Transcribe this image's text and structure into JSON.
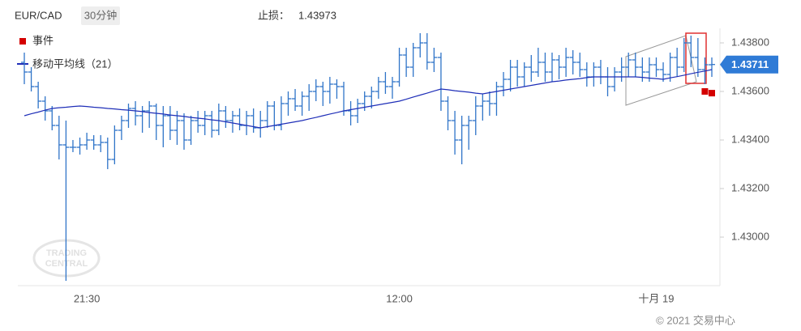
{
  "chart_data": {
    "type": "ohlc",
    "symbol": "EUR/CAD",
    "interval": "30分钟",
    "stop_loss_label": "止损：",
    "stop_loss": 1.43973,
    "last_price": 1.43711,
    "copyright": "© 2021 交易中心",
    "watermark": [
      "TRADING",
      "CENTRAL"
    ],
    "color": "#2f74c8",
    "categories": [
      null,
      null,
      null,
      null,
      null,
      null,
      null,
      null,
      null,
      "21:30",
      null,
      null,
      null,
      null,
      null,
      null,
      null,
      null,
      null,
      null,
      null,
      null,
      null,
      null,
      null,
      null,
      null,
      null,
      null,
      null,
      null,
      null,
      null,
      null,
      null,
      null,
      null,
      null,
      null,
      null,
      null,
      null,
      null,
      null,
      null,
      null,
      null,
      null,
      null,
      null,
      null,
      null,
      null,
      null,
      "12:00",
      null,
      null,
      null,
      null,
      null,
      null,
      null,
      null,
      null,
      null,
      null,
      null,
      null,
      null,
      null,
      null,
      null,
      null,
      null,
      null,
      null,
      null,
      null,
      null,
      null,
      null,
      null,
      null,
      null,
      null,
      null,
      null,
      null,
      null,
      null,
      null,
      "十月 19",
      null,
      null,
      null,
      null,
      null,
      null,
      null,
      null
    ],
    "open": [
      1.4372,
      1.4368,
      1.4362,
      1.4356,
      1.4352,
      1.4346,
      1.4338,
      1.4337,
      1.4337,
      1.4338,
      1.434,
      1.4338,
      1.4339,
      1.4332,
      1.4344,
      1.4348,
      1.4353,
      1.435,
      1.4352,
      1.4354,
      1.4346,
      1.435,
      1.4344,
      1.4348,
      1.434,
      1.4348,
      1.4346,
      1.435,
      1.4344,
      1.4352,
      1.4348,
      1.435,
      1.4346,
      1.435,
      1.4345,
      1.4348,
      1.4354,
      1.4346,
      1.4355,
      1.4357,
      1.4354,
      1.4358,
      1.436,
      1.4362,
      1.436,
      1.4363,
      1.4362,
      1.4352,
      1.435,
      1.4355,
      1.4358,
      1.436,
      1.4364,
      1.4362,
      1.4364,
      1.4375,
      1.437,
      1.4378,
      1.438,
      1.4372,
      1.4374,
      1.4356,
      1.4348,
      1.434,
      1.4346,
      1.4348,
      1.4354,
      1.4356,
      1.4355,
      1.4362,
      1.4365,
      1.437,
      1.4366,
      1.437,
      1.4368,
      1.4372,
      1.4368,
      1.4373,
      1.437,
      1.4374,
      1.4372,
      1.4369,
      1.4366,
      1.437,
      1.4366,
      1.4362,
      1.4368,
      1.437,
      1.4373,
      1.437,
      1.4368,
      1.4371,
      1.4369,
      1.4367,
      1.4374,
      1.437,
      1.438,
      1.4374,
      1.4369,
      1.4371
    ],
    "high": [
      1.4376,
      1.437,
      1.4364,
      1.4358,
      1.4354,
      1.435,
      1.4348,
      1.434,
      1.4341,
      1.4343,
      1.4342,
      1.4342,
      1.4341,
      1.4346,
      1.435,
      1.4355,
      1.4356,
      1.4354,
      1.4356,
      1.4355,
      1.4354,
      1.4354,
      1.4352,
      1.4351,
      1.435,
      1.4352,
      1.4352,
      1.4352,
      1.4355,
      1.4354,
      1.4352,
      1.4353,
      1.4352,
      1.4353,
      1.4352,
      1.4356,
      1.4356,
      1.4358,
      1.436,
      1.4361,
      1.436,
      1.4363,
      1.4365,
      1.4364,
      1.4366,
      1.4365,
      1.4364,
      1.4356,
      1.4357,
      1.436,
      1.4362,
      1.4366,
      1.4368,
      1.4366,
      1.4378,
      1.4378,
      1.438,
      1.4384,
      1.4384,
      1.4378,
      1.4376,
      1.4358,
      1.4352,
      1.435,
      1.435,
      1.4358,
      1.4359,
      1.436,
      1.4364,
      1.4368,
      1.4373,
      1.4373,
      1.4372,
      1.4375,
      1.4378,
      1.4376,
      1.4376,
      1.4375,
      1.4378,
      1.4377,
      1.4376,
      1.4372,
      1.4372,
      1.4373,
      1.437,
      1.437,
      1.4374,
      1.4376,
      1.4376,
      1.4374,
      1.4374,
      1.4374,
      1.4372,
      1.4376,
      1.4378,
      1.4382,
      1.4383,
      1.4382,
      1.4374,
      1.4374
    ],
    "low": [
      1.4363,
      1.436,
      1.4353,
      1.4348,
      1.4344,
      1.4332,
      1.4282,
      1.4335,
      1.4334,
      1.4336,
      1.4336,
      1.4335,
      1.4328,
      1.433,
      1.434,
      1.4345,
      1.4346,
      1.4343,
      1.4345,
      1.434,
      1.4337,
      1.434,
      1.4338,
      1.4336,
      1.4338,
      1.4343,
      1.4342,
      1.4341,
      1.4342,
      1.4345,
      1.4343,
      1.4344,
      1.4342,
      1.4343,
      1.4341,
      1.4345,
      1.4344,
      1.4344,
      1.435,
      1.4352,
      1.435,
      1.4352,
      1.4356,
      1.4354,
      1.4355,
      1.4357,
      1.435,
      1.4346,
      1.4347,
      1.4352,
      1.4353,
      1.4357,
      1.4359,
      1.4357,
      1.4362,
      1.4366,
      1.4366,
      1.4374,
      1.4369,
      1.4368,
      1.4352,
      1.4344,
      1.4334,
      1.433,
      1.4336,
      1.4342,
      1.4348,
      1.435,
      1.435,
      1.4358,
      1.436,
      1.4362,
      1.4362,
      1.4364,
      1.4366,
      1.4364,
      1.4364,
      1.4365,
      1.4366,
      1.4367,
      1.4366,
      1.4362,
      1.4362,
      1.4363,
      1.4358,
      1.436,
      1.4364,
      1.4366,
      1.4366,
      1.4364,
      1.4364,
      1.4366,
      1.4364,
      1.4364,
      1.4366,
      1.4368,
      1.437,
      1.4366,
      1.4363,
      1.4366
    ],
    "close": [
      1.4368,
      1.4362,
      1.4356,
      1.4352,
      1.4346,
      1.4338,
      1.4337,
      1.4337,
      1.4338,
      1.434,
      1.4338,
      1.4339,
      1.4332,
      1.4344,
      1.4348,
      1.4353,
      1.435,
      1.4352,
      1.4354,
      1.4346,
      1.435,
      1.4344,
      1.4348,
      1.434,
      1.4348,
      1.4346,
      1.435,
      1.4344,
      1.4352,
      1.4348,
      1.435,
      1.4346,
      1.435,
      1.4345,
      1.4348,
      1.4354,
      1.4346,
      1.4355,
      1.4357,
      1.4354,
      1.4358,
      1.436,
      1.4362,
      1.436,
      1.4363,
      1.4362,
      1.4352,
      1.435,
      1.4355,
      1.4358,
      1.436,
      1.4364,
      1.4362,
      1.4364,
      1.4375,
      1.437,
      1.4378,
      1.438,
      1.4372,
      1.4374,
      1.4356,
      1.4348,
      1.434,
      1.4346,
      1.4348,
      1.4354,
      1.4356,
      1.4355,
      1.4362,
      1.4365,
      1.437,
      1.4366,
      1.437,
      1.4368,
      1.4372,
      1.4368,
      1.4373,
      1.437,
      1.4374,
      1.4372,
      1.4369,
      1.4366,
      1.437,
      1.4366,
      1.4362,
      1.4368,
      1.437,
      1.4373,
      1.437,
      1.4368,
      1.4371,
      1.4369,
      1.4367,
      1.4374,
      1.437,
      1.438,
      1.4374,
      1.4369,
      1.4371,
      1.43711
    ],
    "ma": {
      "name": "移动平均线（21）",
      "color": "#1f2fb8",
      "values": [
        1.435,
        1.43508,
        1.43515,
        1.43523,
        1.4353,
        1.43533,
        1.43535,
        1.43538,
        1.4354,
        1.43538,
        1.43535,
        1.43533,
        1.4353,
        1.43528,
        1.43525,
        1.43523,
        1.4352,
        1.43517,
        1.43513,
        1.4351,
        1.43507,
        1.43503,
        1.435,
        1.43497,
        1.43493,
        1.4349,
        1.43487,
        1.43483,
        1.4348,
        1.43475,
        1.4347,
        1.43465,
        1.4346,
        1.43455,
        1.4345,
        1.43455,
        1.4346,
        1.43465,
        1.4347,
        1.43475,
        1.4348,
        1.43487,
        1.43493,
        1.435,
        1.43507,
        1.43513,
        1.4352,
        1.43525,
        1.4353,
        1.43535,
        1.4354,
        1.43545,
        1.4355,
        1.43555,
        1.4356,
        1.43568,
        1.43577,
        1.43585,
        1.43593,
        1.43602,
        1.4361,
        1.43607,
        1.43603,
        1.436,
        1.43597,
        1.43593,
        1.4359,
        1.43595,
        1.436,
        1.43605,
        1.4361,
        1.43615,
        1.4362,
        1.43625,
        1.4363,
        1.43635,
        1.4364,
        1.43643,
        1.43647,
        1.4365,
        1.43653,
        1.43657,
        1.4366,
        1.4366,
        1.4366,
        1.4366,
        1.4366,
        1.4366,
        1.4366,
        1.43658,
        1.43655,
        1.43653,
        1.4365,
        1.43656,
        1.43661,
        1.43667,
        1.43673,
        1.43679,
        1.43684,
        1.4369
      ]
    },
    "events": {
      "name": "事件",
      "color": "#d40000",
      "x": [
        98,
        99
      ],
      "values": [
        1.436,
        1.43593
      ]
    },
    "ylim": [
      1.428,
      1.4386
    ],
    "yticks": [
      {
        "value": 1.43,
        "label": "1.43000"
      },
      {
        "value": 1.432,
        "label": "1.43200"
      },
      {
        "value": 1.434,
        "label": "1.43400"
      },
      {
        "value": 1.436,
        "label": "1.43600"
      },
      {
        "value": 1.438,
        "label": "1.43800"
      }
    ]
  }
}
